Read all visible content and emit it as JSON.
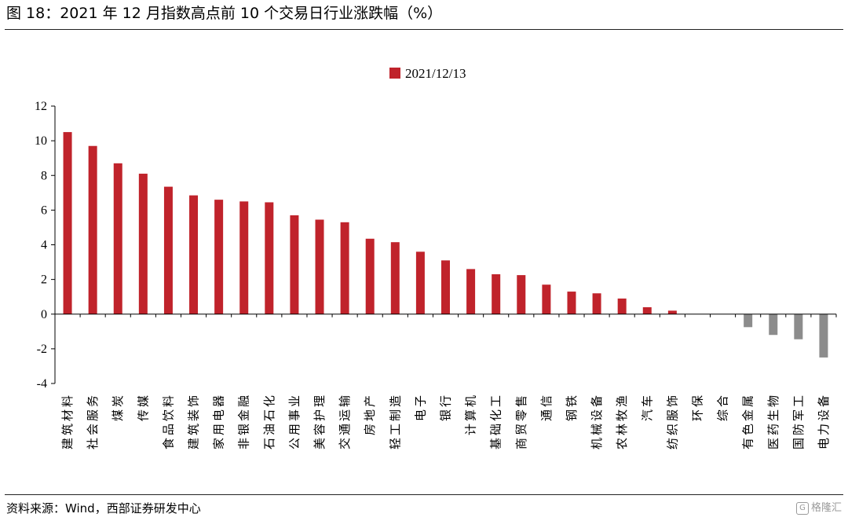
{
  "figure": {
    "title": "图 18：2021 年 12 月指数高点前 10 个交易日行业涨跌幅（%）",
    "source": "资料来源：Wind，西部证券研发中心",
    "watermark": "格隆汇"
  },
  "colors": {
    "positive": "#c0232b",
    "negative": "#8c8c8c",
    "axis": "#000000"
  },
  "chart_data": {
    "type": "bar",
    "title": "",
    "xlabel": "",
    "ylabel": "",
    "ylim": [
      -4,
      12
    ],
    "yticks": [
      -4,
      -2,
      0,
      2,
      4,
      6,
      8,
      10,
      12
    ],
    "grid": false,
    "legend": {
      "placement": "top-center"
    },
    "categories": [
      "建筑材料",
      "社会服务",
      "煤炭",
      "传媒",
      "食品饮料",
      "建筑装饰",
      "家用电器",
      "非银金融",
      "石油石化",
      "公用事业",
      "美容护理",
      "交通运输",
      "房地产",
      "轻工制造",
      "电子",
      "银行",
      "计算机",
      "基础化工",
      "商贸零售",
      "通信",
      "钢铁",
      "机械设备",
      "农林牧渔",
      "汽车",
      "纺织服饰",
      "环保",
      "综合",
      "有色金属",
      "医药生物",
      "国防军工",
      "电力设备"
    ],
    "series": [
      {
        "name": "2021/12/13",
        "values": [
          10.5,
          9.7,
          8.7,
          8.1,
          7.35,
          6.85,
          6.6,
          6.5,
          6.45,
          5.7,
          5.45,
          5.3,
          4.35,
          4.15,
          3.6,
          3.1,
          2.6,
          2.3,
          2.25,
          1.7,
          1.3,
          1.2,
          0.9,
          0.4,
          0.2,
          0.0,
          0.0,
          -0.75,
          -1.2,
          -1.45,
          -2.5
        ]
      }
    ]
  }
}
